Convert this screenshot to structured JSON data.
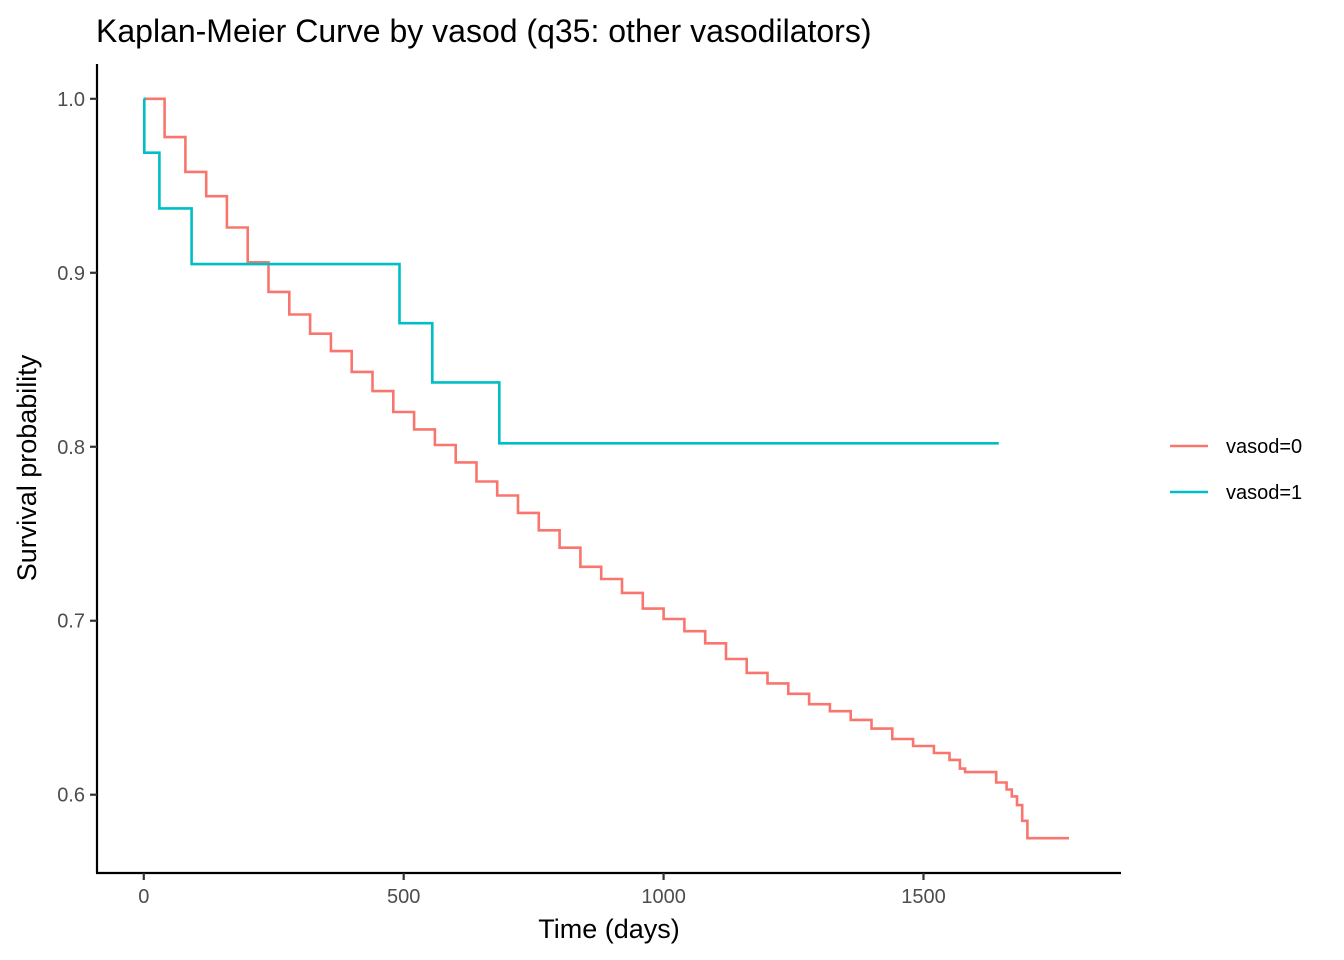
{
  "chart_data": {
    "type": "line",
    "title": "Kaplan-Meier Curve by vasod (q35: other vasodilators)",
    "xlabel": "Time (days)",
    "ylabel": "Survival probability",
    "xlim": [
      -90,
      1880
    ],
    "ylim": [
      0.555,
      1.02
    ],
    "x_ticks": [
      0,
      500,
      1000,
      1500
    ],
    "y_ticks": [
      0.6,
      0.7,
      0.8,
      0.9,
      1.0
    ],
    "x_tick_labels": [
      "0",
      "500",
      "1000",
      "1500"
    ],
    "y_tick_labels": [
      "0.6",
      "0.7",
      "0.8",
      "0.9",
      "1.0"
    ],
    "grid": false,
    "legend_position": "right",
    "step_curve": true,
    "series": [
      {
        "name": "vasod=0",
        "color": "#F8766D",
        "x": [
          0,
          40,
          80,
          120,
          160,
          200,
          240,
          280,
          320,
          360,
          400,
          440,
          480,
          520,
          560,
          600,
          640,
          680,
          720,
          760,
          800,
          840,
          880,
          920,
          960,
          1000,
          1040,
          1080,
          1120,
          1160,
          1200,
          1240,
          1280,
          1320,
          1360,
          1400,
          1440,
          1480,
          1520,
          1550,
          1570,
          1580,
          1600,
          1640,
          1660,
          1670,
          1680,
          1690,
          1700,
          1780
        ],
        "values": [
          1.0,
          0.978,
          0.958,
          0.944,
          0.926,
          0.906,
          0.889,
          0.876,
          0.865,
          0.855,
          0.843,
          0.832,
          0.82,
          0.81,
          0.801,
          0.791,
          0.78,
          0.772,
          0.762,
          0.752,
          0.742,
          0.731,
          0.724,
          0.716,
          0.707,
          0.701,
          0.694,
          0.687,
          0.678,
          0.67,
          0.664,
          0.658,
          0.652,
          0.648,
          0.643,
          0.638,
          0.632,
          0.628,
          0.624,
          0.62,
          0.615,
          0.613,
          0.613,
          0.607,
          0.603,
          0.599,
          0.594,
          0.585,
          0.575,
          0.575
        ]
      },
      {
        "name": "vasod=1",
        "color": "#00BFC4",
        "x": [
          0,
          1,
          30,
          92,
          492,
          555,
          684,
          1645
        ],
        "values": [
          1.0,
          0.969,
          0.937,
          0.905,
          0.871,
          0.837,
          0.802,
          0.802
        ]
      }
    ]
  }
}
